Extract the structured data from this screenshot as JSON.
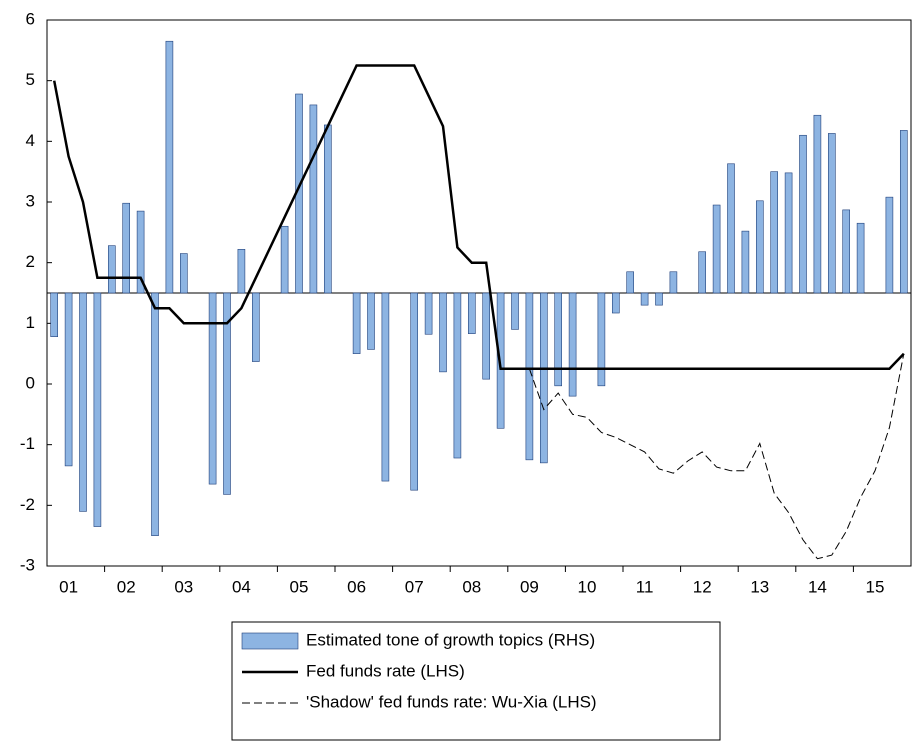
{
  "chart_data": {
    "type": "combo",
    "categories": [
      null,
      "01",
      null,
      null,
      null,
      "02",
      null,
      null,
      null,
      "03",
      null,
      null,
      null,
      "04",
      null,
      null,
      null,
      "05",
      null,
      null,
      null,
      "06",
      null,
      null,
      null,
      "07",
      null,
      null,
      null,
      "08",
      null,
      null,
      null,
      "09",
      null,
      null,
      null,
      "10",
      null,
      null,
      null,
      "11",
      null,
      null,
      null,
      "12",
      null,
      null,
      null,
      "13",
      null,
      null,
      null,
      "14",
      null,
      null,
      null,
      "15",
      null,
      null
    ],
    "ylim": [
      -3,
      6
    ],
    "yticks": [
      -3,
      -2,
      -1,
      0,
      1,
      2,
      3,
      4,
      5,
      6
    ],
    "y2lim": [
      -4.5,
      4.5
    ],
    "series": [
      {
        "name": "Estimated tone of growth topics (RHS)",
        "type": "bar",
        "axis": "y2",
        "color": "#8db4e2",
        "edge": "#1f3f7a",
        "values": [
          -0.72,
          -2.85,
          -3.6,
          -3.85,
          0.78,
          1.48,
          1.35,
          -4.0,
          4.15,
          0.65,
          0,
          -3.15,
          -3.32,
          0.72,
          -1.13,
          0,
          1.1,
          3.28,
          3.1,
          2.77,
          0,
          -1.0,
          -0.93,
          -3.1,
          0,
          -3.25,
          -0.68,
          -1.3,
          -2.72,
          -0.67,
          -1.42,
          -2.23,
          -0.6,
          -2.75,
          -2.8,
          -1.53,
          -1.7,
          0,
          -1.53,
          -0.33,
          0.35,
          -0.2,
          -0.2,
          0.35,
          0,
          0.68,
          1.45,
          2.13,
          1.02,
          1.52,
          2.0,
          1.98,
          2.6,
          2.93,
          2.63,
          1.37,
          1.15,
          0,
          1.58,
          2.68
        ]
      },
      {
        "name": "Fed funds rate (LHS)",
        "type": "line",
        "color": "#000000",
        "dash": "solid",
        "values": [
          5.0,
          3.75,
          3.0,
          1.75,
          1.75,
          1.75,
          1.75,
          1.25,
          1.25,
          1.0,
          1.0,
          1.0,
          1.0,
          1.25,
          1.75,
          2.25,
          2.75,
          3.25,
          3.75,
          4.25,
          4.75,
          5.25,
          5.25,
          5.25,
          5.25,
          5.25,
          4.75,
          4.25,
          2.25,
          2.0,
          2.0,
          0.25,
          0.25,
          0.25,
          0.25,
          0.25,
          0.25,
          0.25,
          0.25,
          0.25,
          0.25,
          0.25,
          0.25,
          0.25,
          0.25,
          0.25,
          0.25,
          0.25,
          0.25,
          0.25,
          0.25,
          0.25,
          0.25,
          0.25,
          0.25,
          0.25,
          0.25,
          0.25,
          0.25,
          0.5
        ]
      },
      {
        "name": "'Shadow' fed funds rate: Wu-Xia (LHS)",
        "type": "line",
        "color": "#000000",
        "dash": "dashed",
        "values": [
          null,
          null,
          null,
          null,
          null,
          null,
          null,
          null,
          null,
          null,
          null,
          null,
          null,
          null,
          null,
          null,
          null,
          null,
          null,
          null,
          null,
          null,
          null,
          null,
          null,
          null,
          null,
          null,
          null,
          null,
          null,
          null,
          null,
          0.25,
          -0.42,
          -0.15,
          -0.5,
          -0.55,
          -0.8,
          -0.88,
          -1.0,
          -1.12,
          -1.4,
          -1.47,
          -1.27,
          -1.12,
          -1.37,
          -1.43,
          -1.43,
          -0.98,
          -1.8,
          -2.12,
          -2.57,
          -2.88,
          -2.82,
          -2.43,
          -1.87,
          -1.43,
          -0.72,
          0.5
        ]
      }
    ]
  }
}
